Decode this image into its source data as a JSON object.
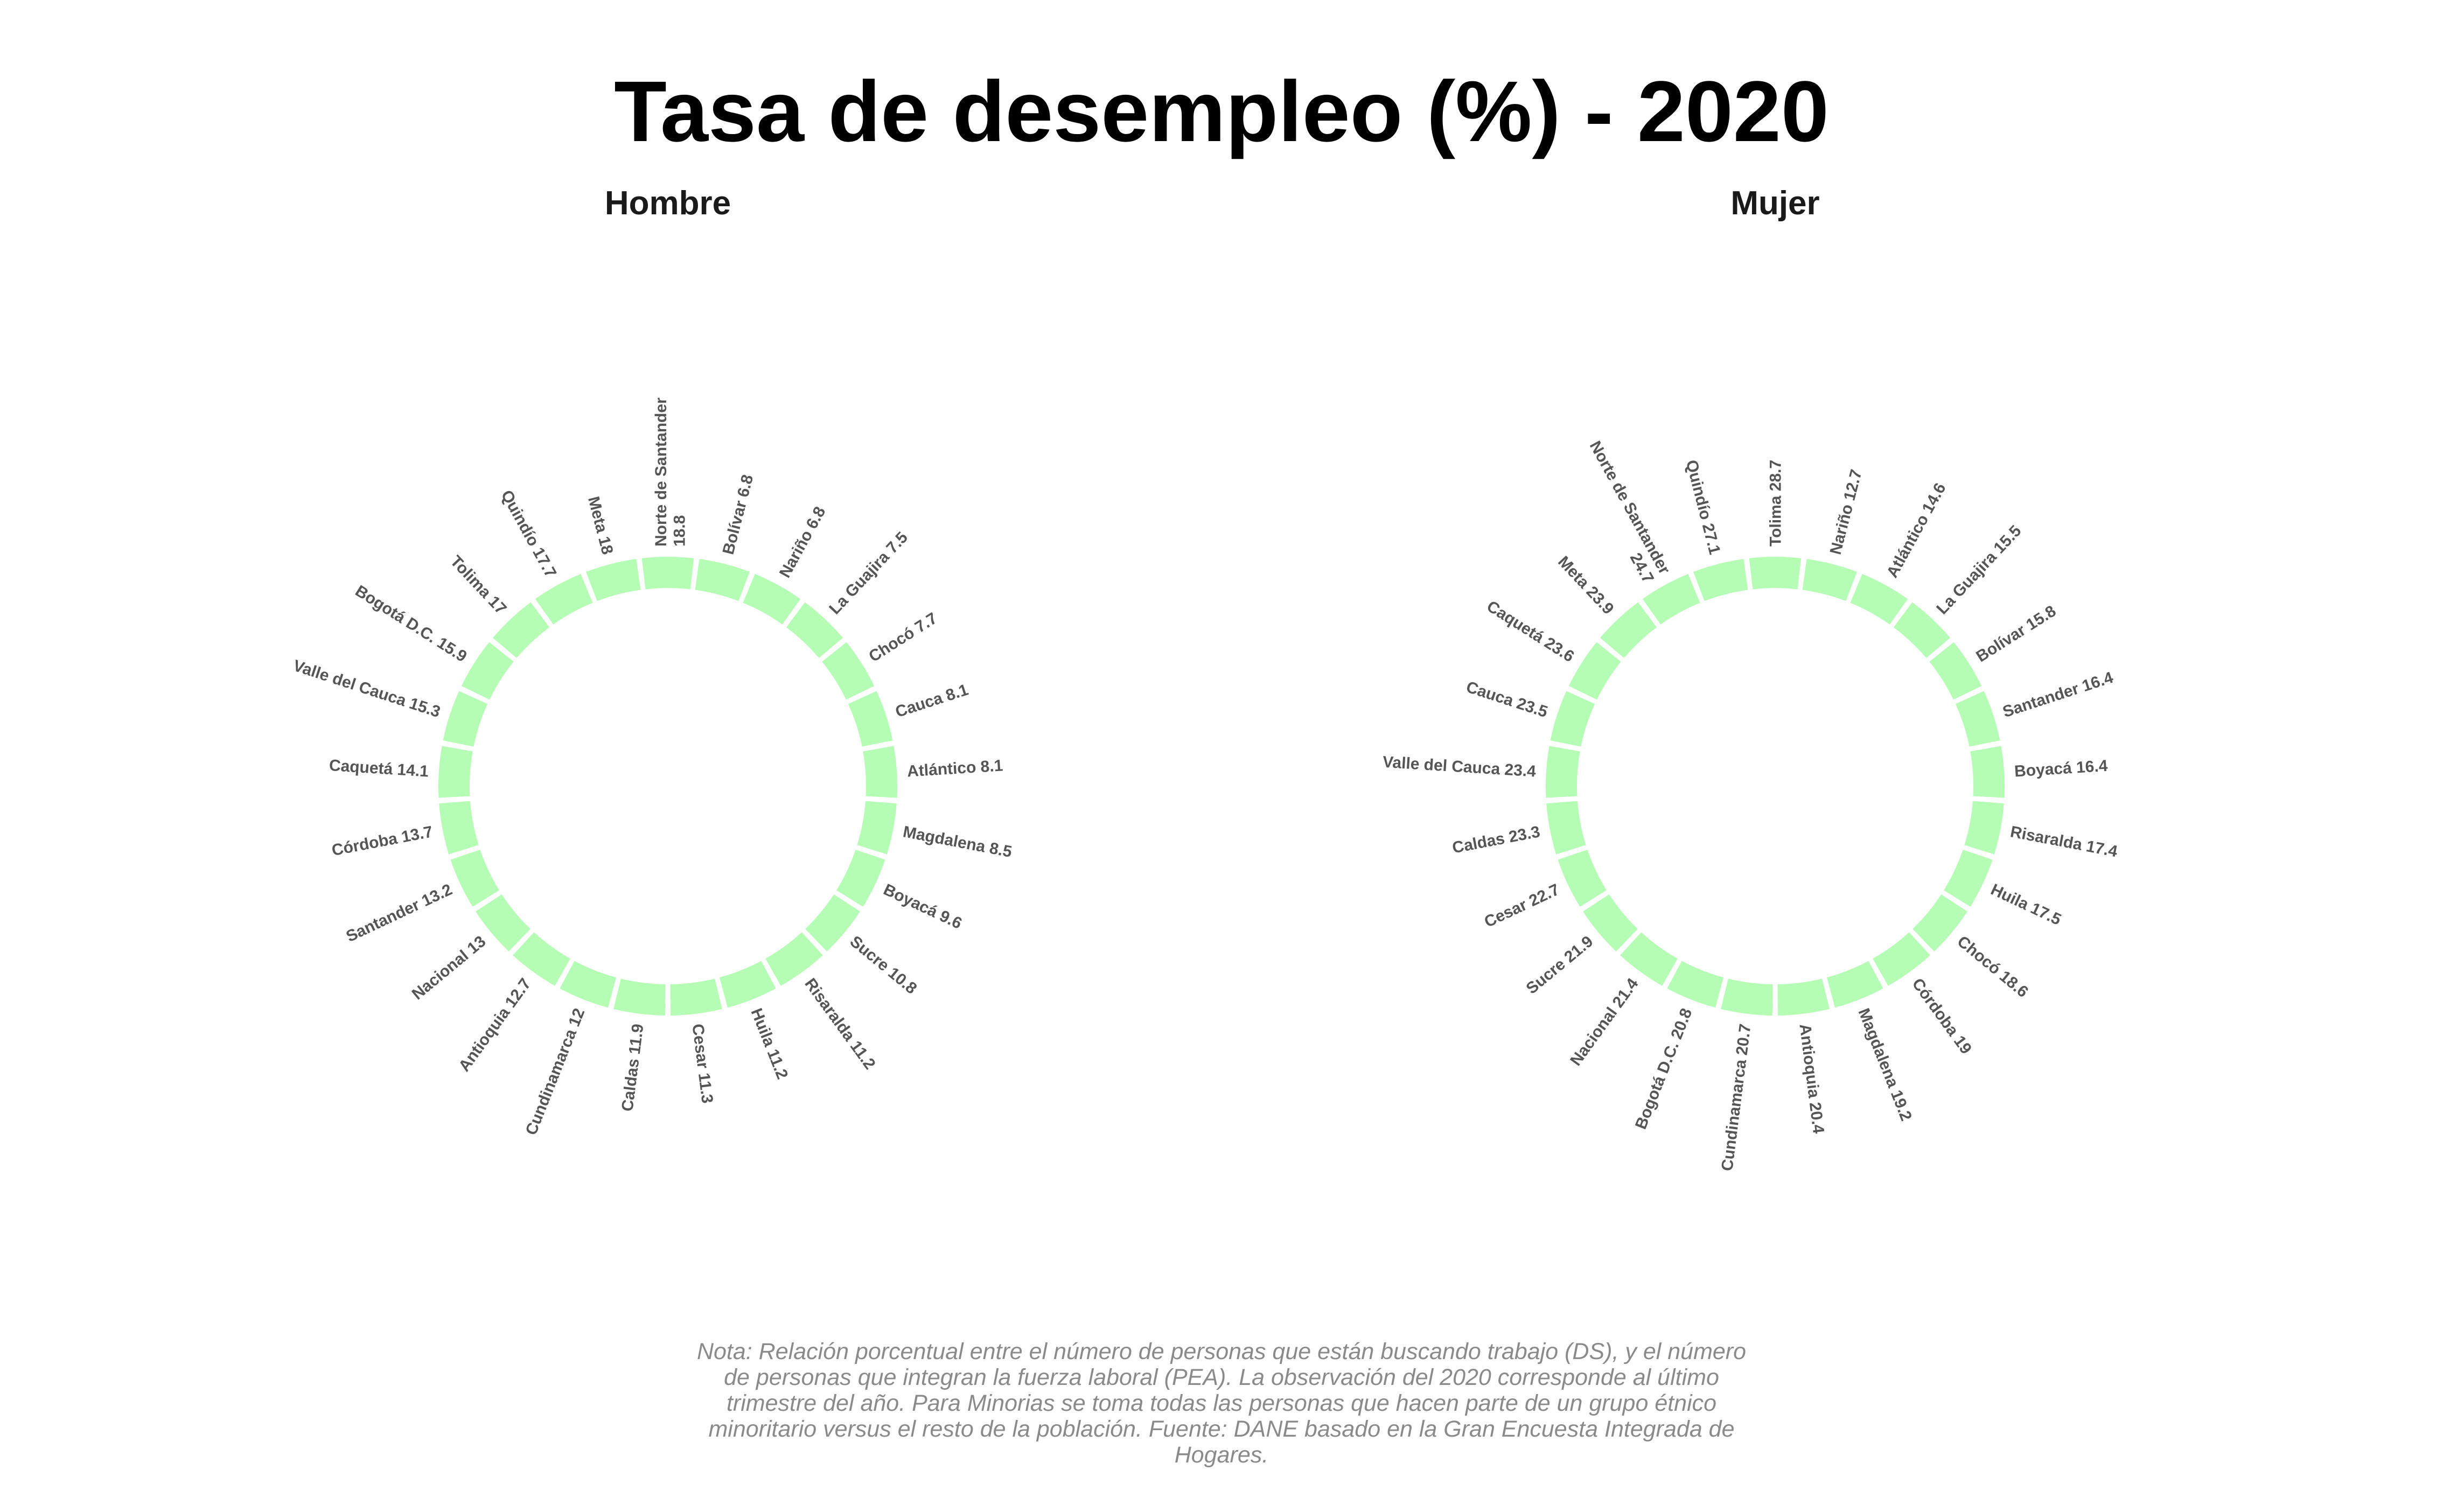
{
  "chart_data": {
    "type": "bar",
    "subtype": "circular-bar",
    "title": "Tasa de desempleo (%) - 2020",
    "bar_color": "#b5fcb5",
    "note_lines": [
      "Nota: Relación porcentual entre el número de personas que están buscando trabajo (DS), y el número",
      "de personas que integran la fuerza laboral (PEA). La observación del 2020 corresponde al último",
      "trimestre del año. Para Minorias se toma todas las personas que hacen parte de un grupo étnico",
      "minoritario versus el resto de la población. Fuente: DANE basado en la Gran Encuesta Integrada de",
      "Hogares."
    ],
    "panels": [
      {
        "name": "Hombre",
        "categories": [
          "Norte de Santander",
          "Bolívar",
          "Nariño",
          "La Guajira",
          "Chocó",
          "Cauca",
          "Atlántico",
          "Magdalena",
          "Boyacá",
          "Sucre",
          "Risaralda",
          "Huila",
          "Cesar",
          "Caldas",
          "Cundinamarca",
          "Antioquia",
          "Nacional",
          "Santander",
          "Córdoba",
          "Caquetá",
          "Valle del Cauca",
          "Bogotá D.C.",
          "Tolima",
          "Quindío",
          "Meta"
        ],
        "values": [
          18.8,
          6.8,
          6.8,
          7.5,
          7.7,
          8.1,
          8.1,
          8.5,
          9.6,
          10.8,
          11.2,
          11.2,
          11.3,
          11.9,
          12,
          12.7,
          13,
          13.2,
          13.7,
          14.1,
          15.3,
          15.9,
          17,
          17.7,
          18
        ],
        "labels": [
          "Norte de Santander\n18.8",
          "Bolívar 6.8",
          "Nariño 6.8",
          "La Guajira 7.5",
          "Chocó 7.7",
          "Cauca 8.1",
          "Atlántico 8.1",
          "Magdalena 8.5",
          "Boyacá 9.6",
          "Sucre 10.8",
          "Risaralda 11.2",
          "Huila 11.2",
          "Cesar 11.3",
          "Caldas 11.9",
          "Cundinamarca 12",
          "Antioquia 12.7",
          "Nacional 13",
          "Santander 13.2",
          "Córdoba 13.7",
          "Caquetá 14.1",
          "Valle del Cauca 15.3",
          "Bogotá D.C. 15.9",
          "Tolima 17",
          "Quindío 17.7",
          "Meta 18"
        ]
      },
      {
        "name": "Mujer",
        "categories": [
          "Tolima",
          "Nariño",
          "Atlántico",
          "La Guajira",
          "Bolívar",
          "Santander",
          "Boyacá",
          "Risaralda",
          "Huila",
          "Chocó",
          "Córdoba",
          "Magdalena",
          "Antioquia",
          "Cundinamarca",
          "Bogotá D.C.",
          "Nacional",
          "Sucre",
          "Cesar",
          "Caldas",
          "Valle del Cauca",
          "Cauca",
          "Caquetá",
          "Meta",
          "Norte de Santander",
          "Quindío"
        ],
        "values": [
          28.7,
          12.7,
          14.6,
          15.5,
          15.8,
          16.4,
          16.4,
          17.4,
          17.5,
          18.6,
          19,
          19.2,
          20.4,
          20.7,
          20.8,
          21.4,
          21.9,
          22.7,
          23.3,
          23.4,
          23.5,
          23.6,
          23.9,
          24.7,
          27.1
        ],
        "labels": [
          "Tolima 28.7",
          "Nariño 12.7",
          "Atlántico 14.6",
          "La Guajira 15.5",
          "Bolívar 15.8",
          "Santander 16.4",
          "Boyacá 16.4",
          "Risaralda 17.4",
          "Huila 17.5",
          "Chocó 18.6",
          "Córdoba 19",
          "Magdalena 19.2",
          "Antioquia 20.4",
          "Cundinamarca 20.7",
          "Bogotá D.C. 20.8",
          "Nacional 21.4",
          "Sucre 21.9",
          "Cesar 22.7",
          "Caldas 23.3",
          "Valle del Cauca 23.4",
          "Cauca 23.5",
          "Caquetá 23.6",
          "Meta 23.9",
          "Norte de Santander\n24.7",
          "Quindío 27.1"
        ]
      }
    ]
  }
}
